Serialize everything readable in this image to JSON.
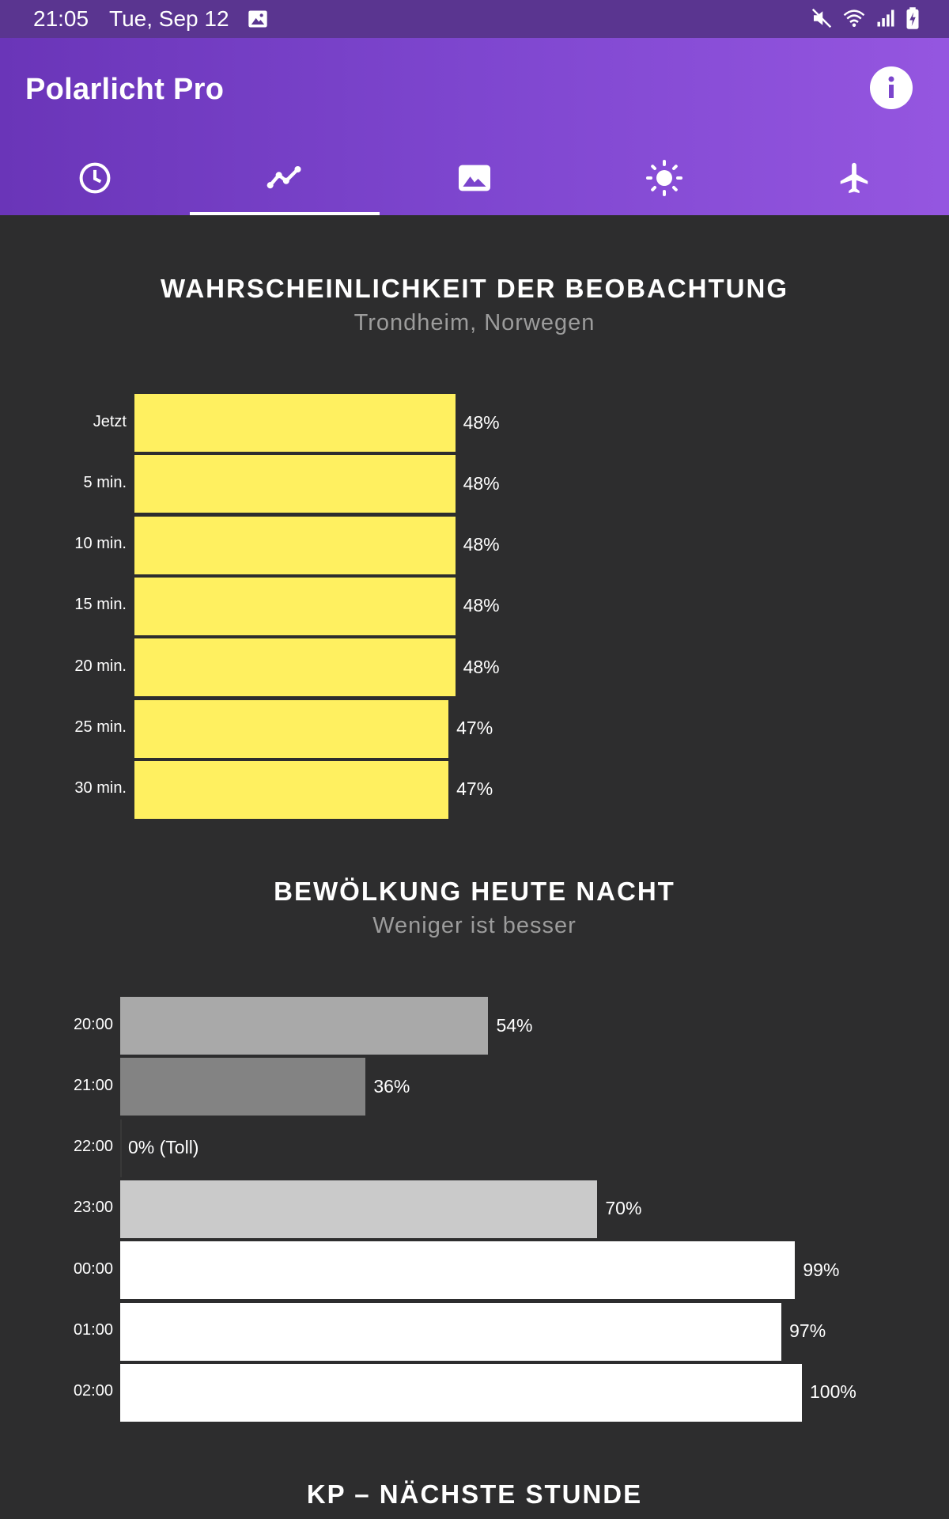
{
  "status_bar": {
    "time": "21:05",
    "date": "Tue, Sep 12",
    "icons": [
      "gallery-icon",
      "mute-icon",
      "wifi-icon",
      "signal-icon",
      "battery-charging-icon"
    ]
  },
  "app_bar": {
    "title": "Polarlicht Pro",
    "info_icon": "info-icon",
    "tabs": [
      {
        "icon": "clock-icon",
        "active": false
      },
      {
        "icon": "trend-line-icon",
        "active": true
      },
      {
        "icon": "image-icon",
        "active": false
      },
      {
        "icon": "sun-icon",
        "active": false
      },
      {
        "icon": "airplane-icon",
        "active": false
      }
    ]
  },
  "probability": {
    "title": "WAHRSCHEINLICHKEIT DER BEOBACHTUNG",
    "subtitle": "Trondheim, Norwegen",
    "bar_color": "#fff060"
  },
  "clouds": {
    "title": "BEWÖLKUNG HEUTE NACHT",
    "subtitle": "Weniger ist besser"
  },
  "kp": {
    "title": "KP – NÄCHSTE STUNDE"
  },
  "chart_data": [
    {
      "type": "bar",
      "orientation": "horizontal",
      "title": "WAHRSCHEINLICHKEIT DER BEOBACHTUNG",
      "subtitle": "Trondheim, Norwegen",
      "categories": [
        "Jetzt",
        "5 min.",
        "10 min.",
        "15 min.",
        "20 min.",
        "25 min.",
        "30 min."
      ],
      "values": [
        48,
        48,
        48,
        48,
        48,
        47,
        47
      ],
      "value_labels": [
        "48%",
        "48%",
        "48%",
        "48%",
        "48%",
        "47%",
        "47%"
      ],
      "xlim": [
        0,
        100
      ],
      "grid": false
    },
    {
      "type": "bar",
      "orientation": "horizontal",
      "title": "BEWÖLKUNG HEUTE NACHT",
      "subtitle": "Weniger ist besser",
      "categories": [
        "20:00",
        "21:00",
        "22:00",
        "23:00",
        "00:00",
        "01:00",
        "02:00"
      ],
      "values": [
        54,
        36,
        0,
        70,
        99,
        97,
        100
      ],
      "value_labels": [
        "54%",
        "36%",
        "0% (Toll)",
        "70%",
        "99%",
        "97%",
        "100%"
      ],
      "xlim": [
        0,
        100
      ],
      "grid": false
    }
  ]
}
